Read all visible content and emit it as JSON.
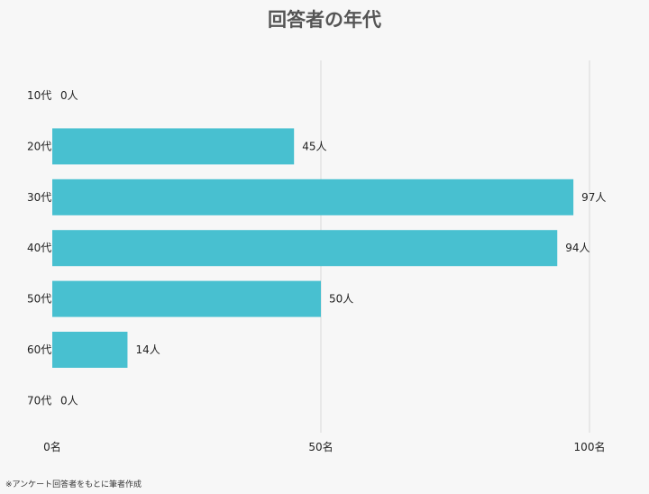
{
  "colors": {
    "bar": "#48c0d0",
    "grid": "#d8d8d8",
    "background": "#f7f7f7"
  },
  "footnote": "※アンケート回答者をもとに筆者作成",
  "chart_data": {
    "type": "bar",
    "orientation": "horizontal",
    "title": "回答者の年代",
    "categories": [
      "10代",
      "20代",
      "30代",
      "40代",
      "50代",
      "60代",
      "70代"
    ],
    "values": [
      0,
      45,
      97,
      94,
      50,
      14,
      0
    ],
    "data_labels": [
      "0人",
      "45人",
      "97人",
      "94人",
      "50人",
      "14人",
      "0人"
    ],
    "xlim": [
      0,
      100
    ],
    "x_ticks": [
      0,
      50,
      100
    ],
    "x_tick_labels": [
      "0名",
      "50名",
      "100名"
    ],
    "grid": true,
    "legend": "none"
  }
}
